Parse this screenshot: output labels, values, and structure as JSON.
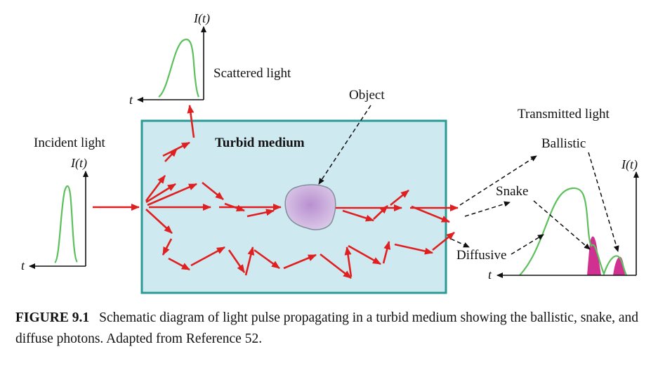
{
  "labels": {
    "scattered_light": "Scattered light",
    "object": "Object",
    "transmitted_light": "Transmitted light",
    "incident_light": "Incident light",
    "turbid_medium": "Turbid medium",
    "ballistic": "Ballistic",
    "snake": "Snake",
    "diffusive": "Diffusive",
    "axis_intensity": "I(t)",
    "axis_time": "t"
  },
  "caption": {
    "figure_id": "FIGURE 9.1",
    "text": "Schematic diagram of light pulse propagating in a turbid medium showing the ballistic, snake, and diffuse photons. Adapted from Reference 52."
  },
  "colors": {
    "medium_fill": "#cfe9f0",
    "medium_border": "#2a9a96",
    "photon_arrow": "#e02020",
    "pulse_curve": "#5cc05c",
    "early_arrival_fill": "#d0308f",
    "object_fill": "#c9a8d8"
  }
}
